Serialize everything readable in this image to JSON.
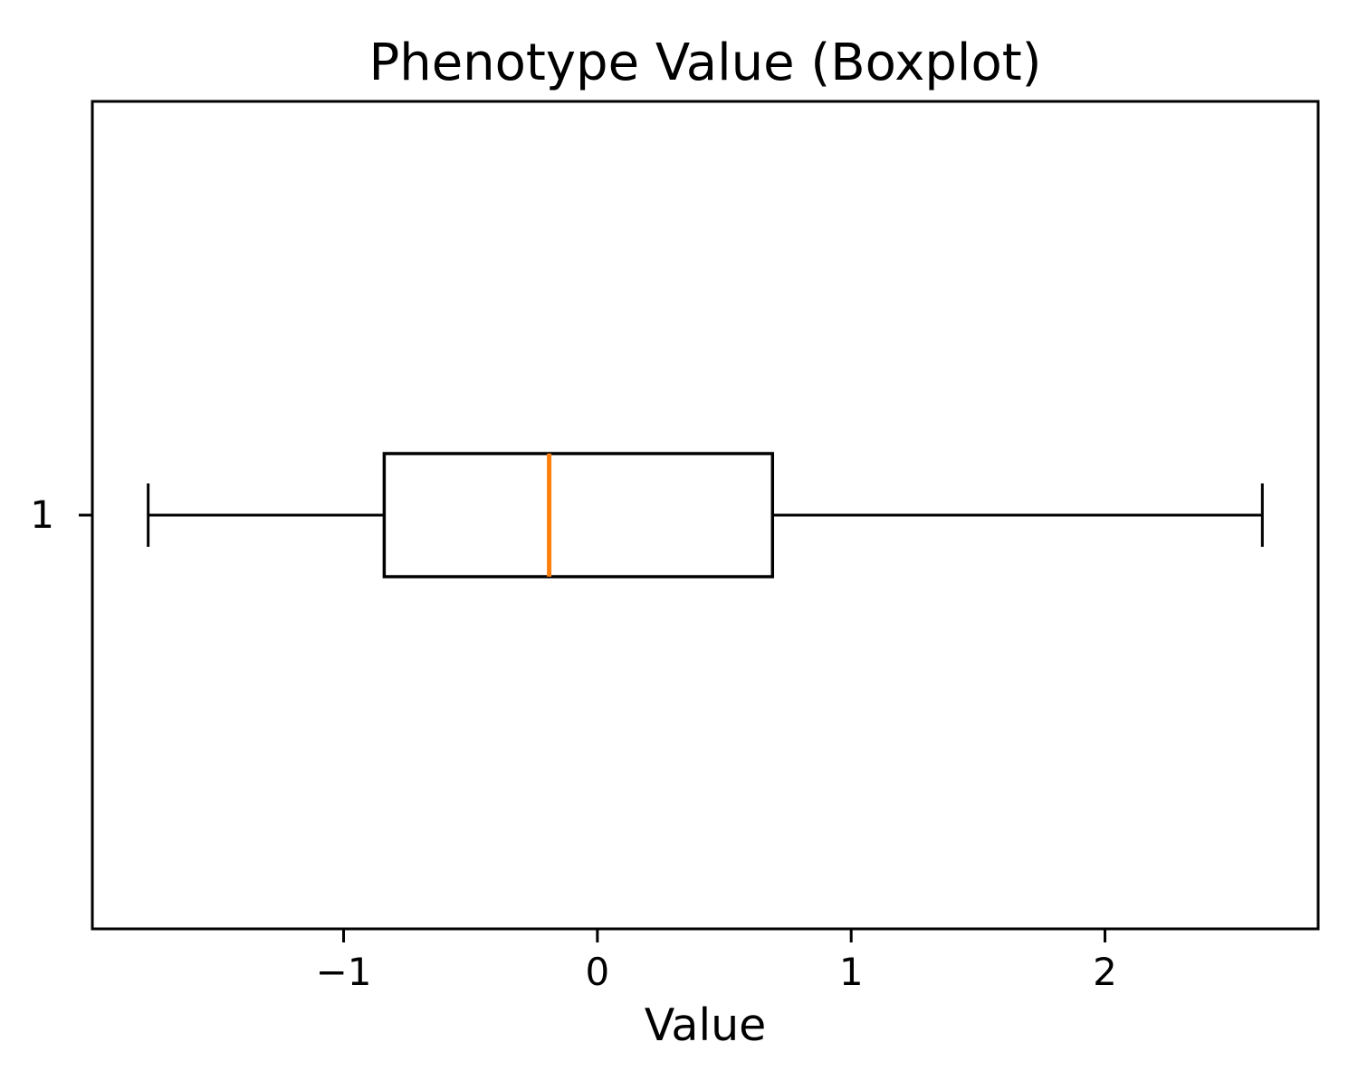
{
  "chart_data": {
    "type": "boxplot",
    "orientation": "horizontal",
    "title": "Phenotype Value (Boxplot)",
    "xlabel": "Value",
    "ylabel": "",
    "grid": false,
    "legend": "none",
    "xlim": [
      -1.99,
      2.84
    ],
    "x_ticks": [
      {
        "value": -1,
        "label": "−1"
      },
      {
        "value": 0,
        "label": "0"
      },
      {
        "value": 1,
        "label": "1"
      },
      {
        "value": 2,
        "label": "2"
      }
    ],
    "y_ticks": [
      {
        "label": "1"
      }
    ],
    "series": [
      {
        "label": "1",
        "whisker_low": -1.77,
        "q1": -0.84,
        "median": -0.19,
        "q3": 0.69,
        "whisker_high": 2.62,
        "fliers": [],
        "median_color": "#ff7f0e",
        "line_color": "#000000",
        "box_fill": "#ffffff"
      }
    ]
  },
  "colors": {
    "background": "#ffffff",
    "axis": "#000000",
    "text": "#000000"
  }
}
